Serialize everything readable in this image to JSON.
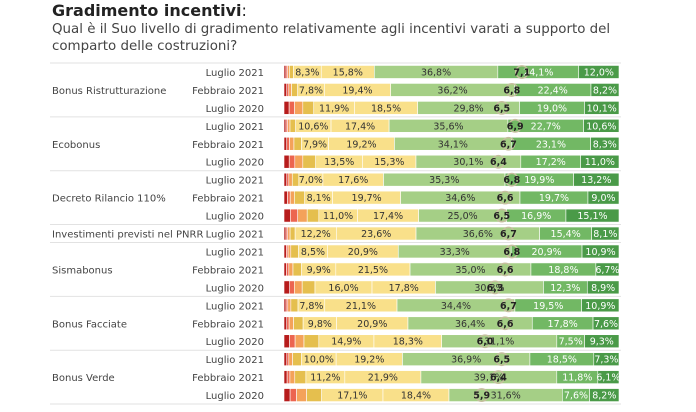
{
  "title": "Gradimento incentivi",
  "title_suffix": ":",
  "subtitle": "Qual è il Suo livello di gradimento relativamente agli incentivi varati a supporto del comparto delle costruzioni?",
  "colors": {
    "s1": "#b71c1c",
    "s2": "#d32f2f",
    "s3": "#ec6550",
    "s4": "#f4a25a",
    "s5": "#e5bf4e",
    "s6": "#f9e08a",
    "s7": "#a5cf86",
    "s8": "#72b864",
    "s9": "#4a9a48",
    "s10": "#357f35",
    "mean_marker": "#c6be9f"
  },
  "chart_data": {
    "type": "bar",
    "stacked": true,
    "orientation": "horizontal",
    "title": "Gradimento incentivi",
    "xlim": [
      0,
      100
    ],
    "groups": [
      {
        "name": "Bonus Ristrutturazione",
        "rows": [
          {
            "period": "Luglio 2021",
            "values": [
              0.6,
              0.5,
              0.5,
              1.2,
              8.3,
              15.8,
              36.8,
              24.1,
              12.0
            ],
            "mean": 7.1
          },
          {
            "period": "Febbraio 2021",
            "values": [
              0.8,
              0.6,
              0.8,
              1.8,
              7.8,
              19.4,
              36.2,
              22.4,
              8.2
            ],
            "mean": 6.8
          },
          {
            "period": "Luglio 2020",
            "values": [
              1.5,
              1.6,
              2.4,
              3.2,
              11.9,
              18.5,
              29.8,
              19.0,
              10.1
            ],
            "mean": 6.5
          }
        ]
      },
      {
        "name": "Ecobonus",
        "rows": [
          {
            "period": "Luglio 2021",
            "values": [
              0.6,
              0.5,
              0.7,
              1.7,
              10.6,
              17.4,
              35.6,
              22.7,
              10.6
            ],
            "mean": 6.9
          },
          {
            "period": "Febbraio 2021",
            "values": [
              0.8,
              0.8,
              1.3,
              2.2,
              7.9,
              19.2,
              34.1,
              23.1,
              8.3
            ],
            "mean": 6.7
          },
          {
            "period": "Luglio 2020",
            "values": [
              1.5,
              1.6,
              2.3,
              3.7,
              13.5,
              15.3,
              30.1,
              17.2,
              11.0
            ],
            "mean": 6.4
          }
        ]
      },
      {
        "name": "Decreto Rilancio 110%",
        "rows": [
          {
            "period": "Luglio 2021",
            "values": [
              0.8,
              0.6,
              1.0,
              1.9,
              7.0,
              17.6,
              35.3,
              19.9,
              13.2
            ],
            "mean": 6.8
          },
          {
            "period": "Febbraio 2021",
            "values": [
              1.0,
              0.8,
              1.2,
              3.0,
              8.1,
              19.7,
              34.6,
              19.7,
              9.0
            ],
            "mean": 6.6
          },
          {
            "period": "Luglio 2020",
            "values": [
              1.8,
              2.1,
              2.7,
              3.3,
              11.0,
              17.4,
              25.0,
              16.9,
              15.1
            ],
            "mean": 6.5
          }
        ]
      },
      {
        "name": "Investimenti previsti nel PNRR",
        "rows": [
          {
            "period": "Luglio 2021",
            "values": [
              0.6,
              0.5,
              0.7,
              1.5,
              12.2,
              23.6,
              36.6,
              15.4,
              8.1
            ],
            "mean": 6.7
          }
        ]
      },
      {
        "name": "Sismabonus",
        "rows": [
          {
            "period": "Luglio 2021",
            "values": [
              0.7,
              0.5,
              0.8,
              2.3,
              8.5,
              20.9,
              33.3,
              20.9,
              10.9
            ],
            "mean": 6.8
          },
          {
            "period": "Febbraio 2021",
            "values": [
              0.7,
              0.7,
              1.2,
              2.5,
              9.9,
              21.5,
              35.0,
              18.8,
              6.7
            ],
            "mean": 6.6
          },
          {
            "period": "Luglio 2020",
            "values": [
              1.6,
              1.3,
              2.2,
              3.6,
              16.0,
              17.8,
              30.3,
              12.3,
              8.9
            ],
            "mean": 6.3
          }
        ]
      },
      {
        "name": "Bonus Facciate",
        "rows": [
          {
            "period": "Luglio 2021",
            "values": [
              0.6,
              0.5,
              0.9,
              2.1,
              7.8,
              21.1,
              34.4,
              19.5,
              10.9
            ],
            "mean": 6.7
          },
          {
            "period": "Febbraio 2021",
            "values": [
              0.8,
              0.7,
              1.3,
              2.8,
              9.8,
              20.9,
              36.4,
              17.8,
              7.6
            ],
            "mean": 6.6
          },
          {
            "period": "Luglio 2020",
            "values": [
              1.5,
              1.5,
              2.4,
              4.0,
              14.9,
              18.3,
              31.1,
              7.5,
              9.3
            ],
            "mean": 6.0
          }
        ]
      },
      {
        "name": "Bonus Verde",
        "rows": [
          {
            "period": "Luglio 2021",
            "values": [
              0.8,
              0.6,
              1.1,
              2.6,
              10.0,
              19.2,
              36.9,
              18.5,
              7.3
            ],
            "mean": 6.5
          },
          {
            "period": "Febbraio 2021",
            "values": [
              0.9,
              0.8,
              1.4,
              3.2,
              11.2,
              21.9,
              39.1,
              11.8,
              6.1
            ],
            "mean": 6.4
          },
          {
            "period": "Luglio 2020",
            "values": [
              1.7,
              1.8,
              2.8,
              4.2,
              17.1,
              18.4,
              31.6,
              7.6,
              8.2
            ],
            "mean": 5.9
          }
        ]
      }
    ]
  }
}
